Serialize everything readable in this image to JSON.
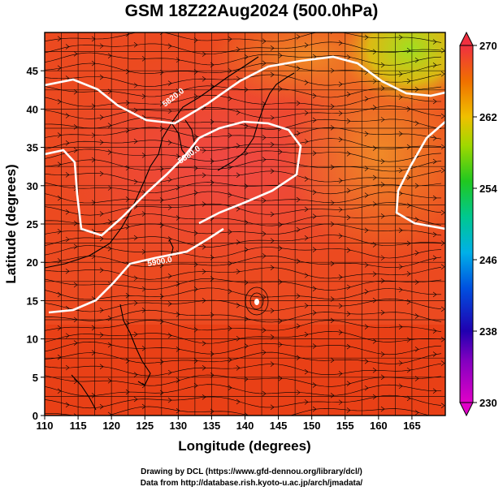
{
  "title": "GSM 18Z22Aug2024 (500.0hPa)",
  "x_axis": {
    "title": "Longitude (degrees)",
    "ticks": [
      110,
      115,
      120,
      125,
      130,
      135,
      140,
      145,
      150,
      155,
      160,
      165
    ],
    "range": [
      110,
      170
    ]
  },
  "y_axis": {
    "title": "Latitude (degrees)",
    "ticks": [
      0,
      5,
      10,
      15,
      20,
      25,
      30,
      35,
      40,
      45
    ],
    "range": [
      0,
      50
    ]
  },
  "colorbar": {
    "labels": [
      "270",
      "262",
      "254",
      "246",
      "238",
      "230"
    ],
    "range": [
      230,
      270
    ]
  },
  "contours": [
    {
      "label": "5820.0"
    },
    {
      "label": "5880.0"
    },
    {
      "label": "5900.0"
    }
  ],
  "credits": {
    "line1": "Drawing by DCL (https://www.gfd-dennou.org/library/dcl/)",
    "line2": "Data from http://database.rish.kyoto-u.ac.jp/arch/jmadata/"
  }
}
